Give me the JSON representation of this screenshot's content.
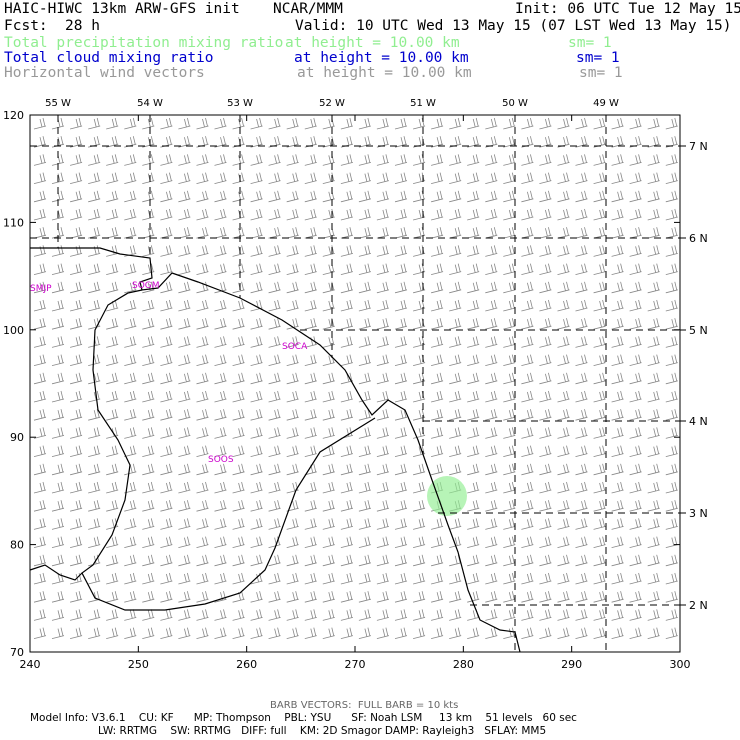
{
  "header": {
    "model_title": "HAIC-HIWC 13km ARW-GFS init",
    "org": "NCAR/MMM",
    "init": "Init: 06 UTC Tue 12 May 15",
    "fcst_label": "Fcst:",
    "fcst_value": "28 h",
    "valid": "Valid: 10 UTC Wed 13 May 15 (07 LST Wed 13 May 15)",
    "fields": [
      {
        "name": "Total precipitation mixing ratio",
        "level": "at height = 10.00 km",
        "sm": "sm= 1",
        "color": "#90ee90"
      },
      {
        "name": "Total cloud mixing ratio",
        "level": "at height = 10.00 km",
        "sm": "sm= 1",
        "color": "#0000cd"
      },
      {
        "name": "Horizontal wind vectors",
        "level": "at height = 10.00 km",
        "sm": "sm= 1",
        "color": "#999999"
      }
    ]
  },
  "map": {
    "x_ticks": [
      "240",
      "250",
      "260",
      "270",
      "280",
      "290",
      "300"
    ],
    "y_ticks": [
      "70",
      "80",
      "90",
      "100",
      "110",
      "120"
    ],
    "lon_labels": [
      "55 W",
      "54 W",
      "53 W",
      "52 W",
      "51 W",
      "50 W",
      "49 W"
    ],
    "lat_labels": [
      "7 N",
      "6 N",
      "5 N",
      "4 N",
      "3 N",
      "2 N"
    ],
    "stations": [
      "SMJP",
      "SOGM",
      "SOCA",
      "SOOS"
    ],
    "station_color": "#cc00cc",
    "barb_color": "#888888",
    "precip_color": "#90ee90"
  },
  "footer": {
    "barb_note": "BARB VECTORS:  FULL BARB = 10 kts",
    "line1": "Model Info: V3.6.1    CU: KF      MP: Thompson    PBL: YSU      SF: Noah LSM     13 km    51 levels   60 sec",
    "line2": "LW: RRTMG    SW: RRTMG   DIFF: full    KM: 2D Smagor DAMP: Rayleigh3   SFLAY: MM5"
  }
}
